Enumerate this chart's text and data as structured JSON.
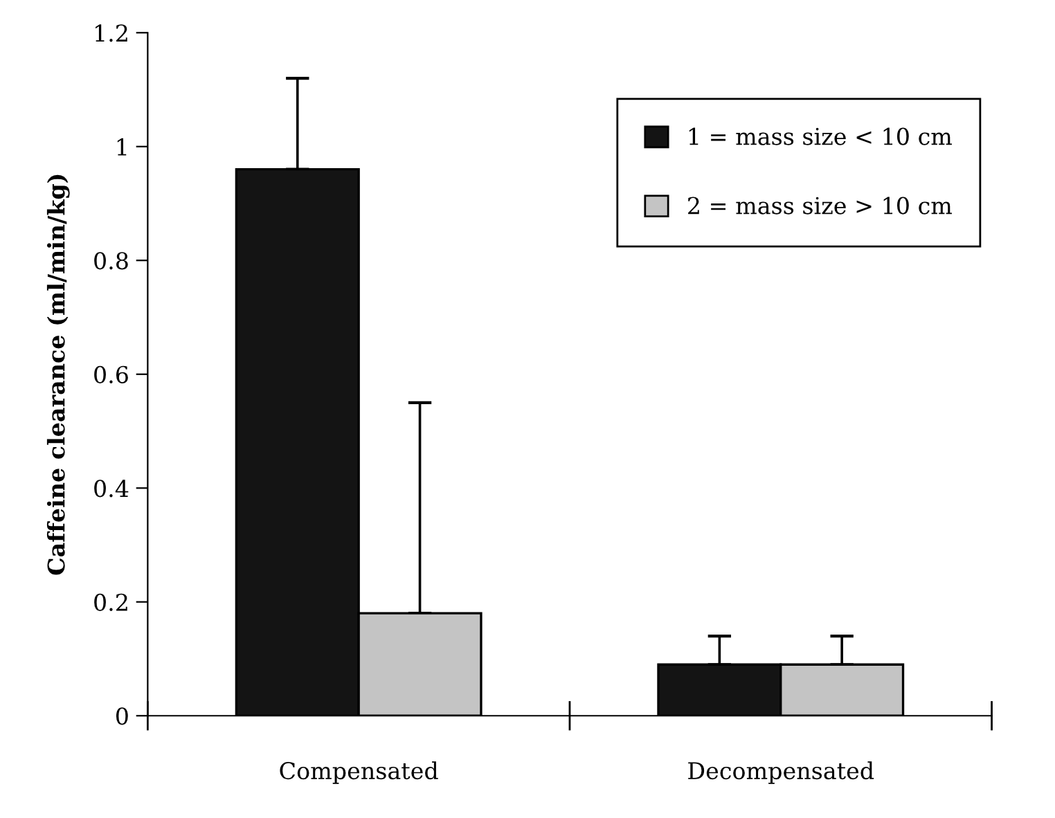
{
  "chart_data": {
    "type": "bar",
    "ylabel": "Caffeine clearance (ml/min/kg)",
    "categories": [
      "Compensated",
      "Decompensated"
    ],
    "series": [
      {
        "name": "1 = mass size < 10 cm",
        "color": "#141414",
        "values": [
          0.96,
          0.09
        ],
        "errors": [
          [
            0.96,
            1.12
          ],
          [
            0.09,
            0.14
          ]
        ]
      },
      {
        "name": "2 = mass size > 10 cm",
        "color": "#c4c4c4",
        "values": [
          0.18,
          0.09
        ],
        "errors": [
          [
            0.18,
            0.55
          ],
          [
            0.09,
            0.14
          ]
        ]
      }
    ],
    "ylim": [
      0,
      1.2
    ],
    "yticks": [
      0,
      0.2,
      0.4,
      0.6,
      0.8,
      1,
      1.2
    ],
    "grid": false,
    "legend": "top right"
  }
}
